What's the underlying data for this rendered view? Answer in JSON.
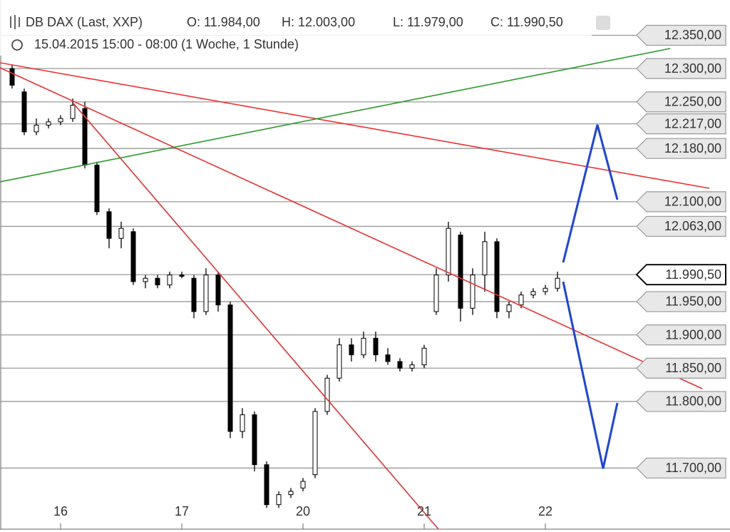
{
  "chart_data": {
    "type": "candlestick",
    "title": "DB DAX (Last, XXP)",
    "header_values": [
      "O: 11.984,00",
      "H: 12.003,00",
      "L: 11.979,00",
      "C: 11.990,50"
    ],
    "subtitle": "15.04.2015 15:00 - 08:00 (1 Woche, 1 Stunde)",
    "categories": [
      null,
      null,
      null,
      null,
      "16",
      null,
      null,
      null,
      null,
      null,
      null,
      null,
      null,
      null,
      "17",
      null,
      null,
      null,
      null,
      null,
      null,
      null,
      null,
      null,
      "20",
      null,
      null,
      null,
      null,
      null,
      null,
      null,
      null,
      null,
      "21",
      null,
      null,
      null,
      null,
      null,
      null,
      null,
      null,
      null,
      "22",
      null,
      null,
      null,
      null,
      null,
      null,
      null,
      null,
      null,
      null,
      null,
      null,
      null,
      null
    ],
    "open": [
      12300,
      12265,
      12205,
      12215,
      12220,
      12225,
      12240,
      12155,
      12085,
      12045,
      12055,
      11980,
      11985,
      11975,
      11990,
      11985,
      11935,
      11990,
      11945,
      11755,
      11780,
      11705,
      11645,
      11660,
      11670,
      11690,
      11785,
      11835,
      11885,
      11870,
      11895,
      11870,
      11860,
      11850,
      11855,
      11935,
      11990,
      12050,
      11940,
      11990,
      12040,
      11935,
      11945,
      11960,
      11965,
      11970,
      null,
      null,
      null,
      null,
      null,
      null,
      null,
      null,
      null,
      null,
      null,
      null,
      null
    ],
    "high": [
      12305,
      12270,
      12225,
      12225,
      12230,
      12255,
      12250,
      12160,
      12090,
      12070,
      12060,
      11990,
      11990,
      11995,
      11995,
      11990,
      12000,
      11995,
      11950,
      11790,
      11785,
      11710,
      11665,
      11670,
      11685,
      11790,
      11840,
      11895,
      11895,
      11905,
      11905,
      11880,
      11865,
      11860,
      11885,
      12000,
      12070,
      12055,
      12000,
      12055,
      12045,
      11950,
      11965,
      11970,
      11975,
      11995,
      null,
      null,
      null,
      null,
      null,
      null,
      null,
      null,
      null,
      null,
      null,
      null,
      null
    ],
    "low": [
      12270,
      12200,
      12200,
      12210,
      12215,
      12220,
      12150,
      12080,
      12030,
      12030,
      11975,
      11970,
      11970,
      11970,
      11985,
      11925,
      11930,
      11935,
      11745,
      11745,
      11695,
      11640,
      11640,
      11655,
      11665,
      11685,
      11780,
      11830,
      11860,
      11865,
      11860,
      11855,
      11845,
      11845,
      11850,
      11930,
      11980,
      11920,
      11930,
      11965,
      11925,
      11925,
      11940,
      11955,
      11960,
      11965,
      null,
      null,
      null,
      null,
      null,
      null,
      null,
      null,
      null,
      null,
      null,
      null,
      null
    ],
    "close": [
      12275,
      12205,
      12215,
      12220,
      12225,
      12245,
      12155,
      12085,
      12045,
      12060,
      11980,
      11985,
      11975,
      11990,
      11988,
      11935,
      11990,
      11945,
      11755,
      11780,
      11705,
      11645,
      11660,
      11665,
      11680,
      11785,
      11835,
      11885,
      11870,
      11895,
      11870,
      11860,
      11850,
      11855,
      11880,
      11990,
      12060,
      11940,
      11990,
      12040,
      11935,
      11945,
      11960,
      11965,
      11970,
      11985,
      null,
      null,
      null,
      null,
      null,
      null,
      null,
      null,
      null,
      null,
      null,
      null,
      null
    ],
    "ylim": [
      11605,
      12403
    ],
    "yticks": [
      {
        "value": 12350,
        "label": "12.350,00"
      },
      {
        "value": 12300,
        "label": "12.300,00"
      },
      {
        "value": 12250,
        "label": "12.250,00"
      },
      {
        "value": 12217,
        "label": "12.217,00"
      },
      {
        "value": 12180,
        "label": "12.180,00"
      },
      {
        "value": 12100,
        "label": "12.100,00"
      },
      {
        "value": 12063,
        "label": "12.063,00"
      },
      {
        "value": 11950,
        "label": "11.950,00"
      },
      {
        "value": 11900,
        "label": "11.900,00"
      },
      {
        "value": 11850,
        "label": "11.850,00"
      },
      {
        "value": 11800,
        "label": "11.800,00"
      },
      {
        "value": 11700,
        "label": "11.700,00"
      }
    ],
    "last_price": {
      "value": 11990.5,
      "label": "11.990,50"
    },
    "up_color": "#ffffff",
    "down_color": "#000000"
  }
}
